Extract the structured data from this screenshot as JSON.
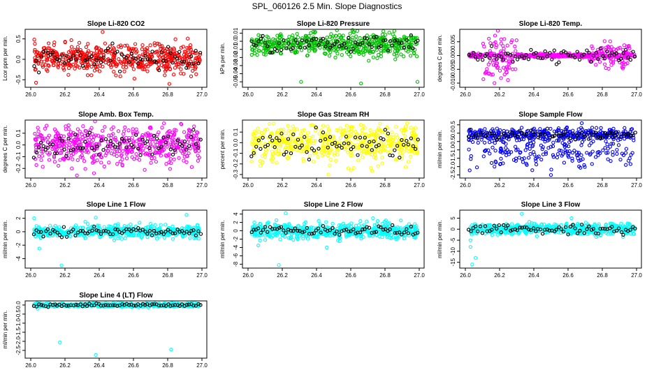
{
  "figure": {
    "title": "SPL_060126  2.5 Min. Slope Diagnostics"
  },
  "chart_data": [
    {
      "type": "scatter",
      "title": "Slope Li-820 CO2",
      "ylabel": "Lcor ppm per min.",
      "xlim": [
        26.0,
        27.0
      ],
      "ylim": [
        -0.65,
        0.7
      ],
      "xticks": [
        "26.0",
        "26.2",
        "26.4",
        "26.6",
        "26.8",
        "27.0"
      ],
      "yticks": [
        "-0.5",
        "0.0",
        "0.5"
      ],
      "ytick_values": [
        -0.5,
        0.0,
        0.5
      ],
      "color": "#ff0000",
      "band": {
        "center": 0.02,
        "spread": 0.17
      },
      "outliers": [
        [
          26.42,
          0.67
        ],
        [
          26.81,
          -0.6
        ],
        [
          26.75,
          0.37
        ],
        [
          26.22,
          -0.38
        ]
      ],
      "black_spread": 0.12
    },
    {
      "type": "scatter",
      "title": "Slope Li-820 Pressure",
      "ylabel": "kPa per min.",
      "xlim": [
        26.0,
        27.0
      ],
      "ylim": [
        -0.055,
        0.013
      ],
      "xticks": [
        "26.0",
        "26.2",
        "26.4",
        "26.6",
        "26.8",
        "27.0"
      ],
      "yticks": [
        "-0.05",
        "-0.04",
        "-0.03",
        "-0.02",
        "-0.01",
        "0.0",
        "0.01"
      ],
      "ytick_values": [
        -0.05,
        -0.04,
        -0.03,
        -0.02,
        -0.01,
        0.0,
        0.01
      ],
      "color": "#00c000",
      "band": {
        "center": -0.004,
        "spread": 0.007
      },
      "outliers": [
        [
          26.31,
          -0.05
        ],
        [
          26.66,
          -0.052
        ],
        [
          26.99,
          -0.05
        ],
        [
          26.51,
          -0.02
        ],
        [
          26.87,
          -0.018
        ]
      ],
      "black_spread": 0.005
    },
    {
      "type": "scatter",
      "title": "Slope Li-820 Temp.",
      "ylabel": "degrees C per min.",
      "xlim": [
        26.0,
        27.0
      ],
      "ylim": [
        -0.011,
        0.009
      ],
      "xticks": [
        "26.0",
        "26.2",
        "26.4",
        "26.6",
        "26.8",
        "27.0"
      ],
      "yticks": [
        "-0.010",
        "-0.005",
        "0.000",
        "0.005"
      ],
      "ytick_values": [
        -0.01,
        -0.005,
        0.0,
        0.005
      ],
      "color": "#ff00ff",
      "band": {
        "center": 0.0,
        "spread": 0.0003
      },
      "clusters": [
        [
          26.1,
          26.3,
          0.004
        ],
        [
          26.72,
          26.98,
          0.002
        ]
      ],
      "outliers": [
        [
          26.19,
          0.009
        ],
        [
          26.17,
          -0.01
        ],
        [
          26.24,
          -0.006
        ]
      ],
      "black_spread": 0.001
    },
    {
      "type": "scatter",
      "title": "Slope Amb. Box Temp.",
      "ylabel": "degrees C per min.",
      "xlim": [
        26.0,
        27.0
      ],
      "ylim": [
        -0.27,
        0.2
      ],
      "xticks": [
        "26.0",
        "26.2",
        "26.4",
        "26.6",
        "26.8",
        "27.0"
      ],
      "yticks": [
        "-0.2",
        "-0.1",
        "0.0",
        "0.1"
      ],
      "ytick_values": [
        -0.2,
        -0.1,
        0.0,
        0.1
      ],
      "color": "#ff00ff",
      "band": {
        "center": 0.0,
        "spread": 0.08
      },
      "outliers": [
        [
          26.27,
          -0.26
        ],
        [
          26.24,
          -0.2
        ],
        [
          26.55,
          0.15
        ]
      ],
      "black_spread": 0.05
    },
    {
      "type": "scatter",
      "title": "Slope Gas Stream RH",
      "ylabel": "percent per min.",
      "xlim": [
        26.0,
        27.0
      ],
      "ylim": [
        -0.32,
        0.2
      ],
      "xticks": [
        "26.0",
        "26.2",
        "26.4",
        "26.6",
        "26.8",
        "27.0"
      ],
      "yticks": [
        "-0.3",
        "-0.2",
        "-0.1",
        "0.0",
        "0.1"
      ],
      "ytick_values": [
        -0.3,
        -0.2,
        -0.1,
        0.0,
        0.1
      ],
      "color": "#ffff00",
      "band": {
        "center": 0.0,
        "spread": 0.09
      },
      "outliers": [
        [
          26.47,
          -0.3
        ],
        [
          26.6,
          -0.26
        ],
        [
          26.15,
          0.18
        ]
      ],
      "black_spread": 0.07
    },
    {
      "type": "scatter",
      "title": "Slope Sample Flow",
      "ylabel": "ml/min per min.",
      "xlim": [
        26.0,
        27.0
      ],
      "ylim": [
        -2.6,
        0.7
      ],
      "xticks": [
        "26.0",
        "26.2",
        "26.4",
        "26.6",
        "26.8",
        "27.0"
      ],
      "yticks": [
        "-2.5",
        "-2.0",
        "-1.5",
        "-1.0",
        "-0.5",
        "0.0",
        "0.5"
      ],
      "ytick_values": [
        -2.5,
        -2.0,
        -1.5,
        -1.0,
        -0.5,
        0.0,
        0.5
      ],
      "color": "#0000ff",
      "band": {
        "center": -0.1,
        "spread": 0.18
      },
      "lower_band": {
        "center": -1.2,
        "spread": 0.45
      },
      "outliers": [
        [
          26.17,
          -2.0
        ],
        [
          26.5,
          -2.5
        ],
        [
          26.68,
          0.6
        ],
        [
          26.96,
          -1.5
        ]
      ],
      "black_spread": 0.15
    },
    {
      "type": "scatter",
      "title": "Slope Line 1 Flow",
      "ylabel": "ml/min per min.",
      "xlim": [
        26.0,
        27.0
      ],
      "ylim": [
        -5.2,
        3.0
      ],
      "xticks": [
        "26.0",
        "26.2",
        "26.4",
        "26.6",
        "26.8",
        "27.0"
      ],
      "yticks": [
        "-4",
        "-2",
        "0",
        "2"
      ],
      "ytick_values": [
        -4,
        -2,
        0,
        2
      ],
      "color": "#00ffff",
      "band": {
        "center": 0.0,
        "spread": 0.45
      },
      "outliers": [
        [
          26.18,
          -5.0
        ],
        [
          26.05,
          -2.5
        ],
        [
          26.91,
          2.5
        ],
        [
          26.38,
          2.1
        ],
        [
          26.02,
          2.0
        ]
      ],
      "black_spread": 0.3
    },
    {
      "type": "scatter",
      "title": "Slope Line 2 Flow",
      "ylabel": "ml/min per min.",
      "xlim": [
        26.0,
        27.0
      ],
      "ylim": [
        -8.6,
        4.6
      ],
      "xticks": [
        "26.0",
        "26.2",
        "26.4",
        "26.6",
        "26.8",
        "27.0"
      ],
      "yticks": [
        "-8",
        "-6",
        "-4",
        "-2",
        "0",
        "2",
        "4"
      ],
      "ytick_values": [
        -8,
        -6,
        -4,
        -2,
        0,
        2,
        4
      ],
      "color": "#00ffff",
      "band": {
        "center": 0.0,
        "spread": 0.9
      },
      "outliers": [
        [
          26.18,
          -8.2
        ],
        [
          26.22,
          4.2
        ],
        [
          26.06,
          -3.5
        ],
        [
          26.46,
          -4.0
        ],
        [
          26.73,
          3.0
        ]
      ],
      "black_spread": 0.6
    },
    {
      "type": "scatter",
      "title": "Slope Line 3 Flow",
      "ylabel": "ml/min per min.",
      "xlim": [
        26.0,
        27.0
      ],
      "ylim": [
        -17,
        8
      ],
      "xticks": [
        "26.0",
        "26.2",
        "26.4",
        "26.6",
        "26.8",
        "27.0"
      ],
      "yticks": [
        "-15",
        "-10",
        "-5",
        "0",
        "5"
      ],
      "ytick_values": [
        -15,
        -10,
        -5,
        0,
        5
      ],
      "color": "#00ffff",
      "band": {
        "center": 0.0,
        "spread": 1.2
      },
      "outliers": [
        [
          26.04,
          -16
        ],
        [
          26.06,
          -13
        ],
        [
          26.03,
          -8
        ],
        [
          26.33,
          7
        ],
        [
          26.62,
          5
        ],
        [
          26.03,
          -5
        ]
      ],
      "black_spread": 1.0
    },
    {
      "type": "scatter",
      "title": "Slope Line 4 (LT) Flow",
      "ylabel": "ml/min per min.",
      "xlim": [
        26.0,
        27.0
      ],
      "ylim": [
        -2.85,
        0.15
      ],
      "xticks": [
        "26.0",
        "26.2",
        "26.4",
        "26.6",
        "26.8",
        "27.0"
      ],
      "yticks": [
        "-2.5",
        "-2.0",
        "-1.5",
        "-1.0",
        "-0.5",
        "0.0"
      ],
      "ytick_values": [
        -2.5,
        -2.0,
        -1.5,
        -1.0,
        -0.5,
        0.0
      ],
      "color": "#00ffff",
      "band": {
        "center": 0.0,
        "spread": 0.05
      },
      "outliers": [
        [
          26.17,
          -2.05
        ],
        [
          26.38,
          -2.75
        ],
        [
          26.82,
          -2.45
        ],
        [
          26.04,
          -0.2
        ]
      ],
      "black_spread": 0.04
    }
  ]
}
